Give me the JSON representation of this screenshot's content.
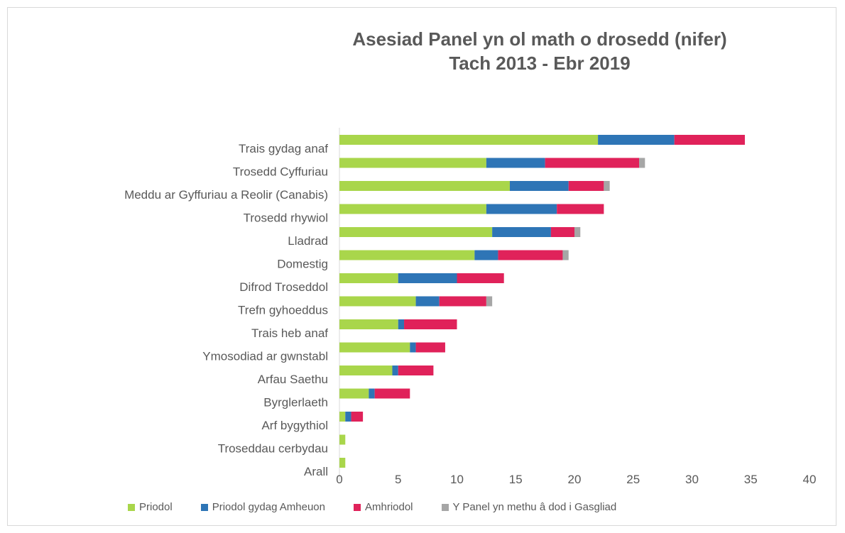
{
  "chart_data": {
    "type": "bar",
    "orientation": "horizontal",
    "stacked": true,
    "title_lines": [
      "Asesiad Panel yn ol math o drosedd (nifer)",
      "Tach 2013 - Ebr 2019"
    ],
    "categories": [
      "Trais gydag anaf",
      "Trosedd Cyffuriau",
      "Meddu ar Gyffuriau a Reolir (Canabis)",
      "Trosedd rhywiol",
      "Lladrad",
      "Domestig",
      "Difrod Troseddol",
      "Trefn gyhoeddus",
      "Trais heb anaf",
      "Ymosodiad ar gwnstabl",
      "Arfau Saethu",
      "Byrglerlaeth",
      "Arf bygythiol",
      "Troseddau cerbydau",
      "Arall"
    ],
    "series": [
      {
        "name": "Priodol",
        "color": "#a9d64b",
        "values": [
          22,
          12.5,
          14.5,
          12.5,
          13,
          11.5,
          5,
          6.5,
          5,
          6,
          4.5,
          2.5,
          0.5,
          0.5,
          0.5
        ]
      },
      {
        "name": "Priodol gydag Amheuon",
        "color": "#2e75b6",
        "values": [
          6.5,
          5,
          5,
          6,
          5,
          2,
          5,
          2,
          0.5,
          0.5,
          0.5,
          0.5,
          0.5,
          0,
          0
        ]
      },
      {
        "name": "Amhriodol",
        "color": "#e0225a",
        "values": [
          6,
          8,
          3,
          4,
          2,
          5.5,
          4,
          4,
          4.5,
          2.5,
          3,
          3,
          1,
          0,
          0
        ]
      },
      {
        "name": "Y Panel yn methu â dod i Gasgliad",
        "color": "#a6a6a6",
        "values": [
          0,
          0.5,
          0.5,
          0,
          0.5,
          0.5,
          0,
          0.5,
          0,
          0,
          0,
          0,
          0,
          0,
          0
        ]
      }
    ],
    "xlim": [
      0,
      40
    ],
    "xticks": [
      "0",
      "5",
      "10",
      "15",
      "20",
      "25",
      "30",
      "35",
      "40"
    ],
    "grid": false,
    "legend_position": "bottom"
  }
}
